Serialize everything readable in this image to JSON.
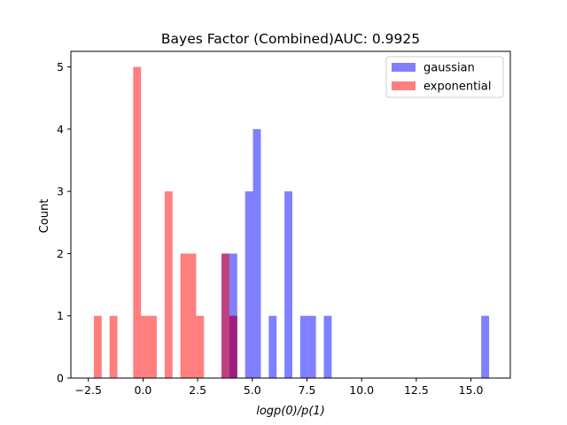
{
  "chart_data": {
    "type": "bar",
    "title": "Bayes Factor (Combined)AUC: 0.9925",
    "xlabel": "logp(0)/p(1)",
    "ylabel": "Count",
    "xlim": [
      -3.3,
      16.8
    ],
    "ylim": [
      0,
      5.25
    ],
    "xticks": [
      -2.5,
      0.0,
      2.5,
      5.0,
      7.5,
      10.0,
      12.5,
      15.0
    ],
    "xtick_labels": [
      "−2.5",
      "0.0",
      "2.5",
      "5.0",
      "7.5",
      "10.0",
      "12.5",
      "15.0"
    ],
    "yticks": [
      0,
      1,
      2,
      3,
      4,
      5
    ],
    "ytick_labels": [
      "0",
      "1",
      "2",
      "3",
      "4",
      "5"
    ],
    "legend_position": "top-right",
    "series": [
      {
        "name": "gaussian",
        "color": "#0000ff",
        "alpha": 0.5,
        "bin_width": 0.36,
        "bins": [
          {
            "x0": 3.59,
            "count": 2
          },
          {
            "x0": 3.95,
            "count": 2
          },
          {
            "x0": 3.95,
            "count": 1
          },
          {
            "x0": 4.67,
            "count": 3
          },
          {
            "x0": 5.03,
            "count": 4
          },
          {
            "x0": 5.75,
            "count": 1
          },
          {
            "x0": 6.47,
            "count": 3
          },
          {
            "x0": 7.19,
            "count": 1
          },
          {
            "x0": 7.55,
            "count": 1
          },
          {
            "x0": 8.27,
            "count": 1
          },
          {
            "x0": 15.47,
            "count": 1
          }
        ]
      },
      {
        "name": "exponential",
        "color": "#ff0000",
        "alpha": 0.5,
        "bin_width": 0.36,
        "bins": [
          {
            "x0": -2.25,
            "count": 1
          },
          {
            "x0": -1.53,
            "count": 1
          },
          {
            "x0": -0.45,
            "count": 5
          },
          {
            "x0": -0.09,
            "count": 1
          },
          {
            "x0": 0.27,
            "count": 1
          },
          {
            "x0": 0.99,
            "count": 3
          },
          {
            "x0": 1.71,
            "count": 2
          },
          {
            "x0": 2.07,
            "count": 2
          },
          {
            "x0": 2.43,
            "count": 1
          },
          {
            "x0": 3.59,
            "count": 2
          },
          {
            "x0": 3.95,
            "count": 1
          }
        ]
      }
    ]
  }
}
